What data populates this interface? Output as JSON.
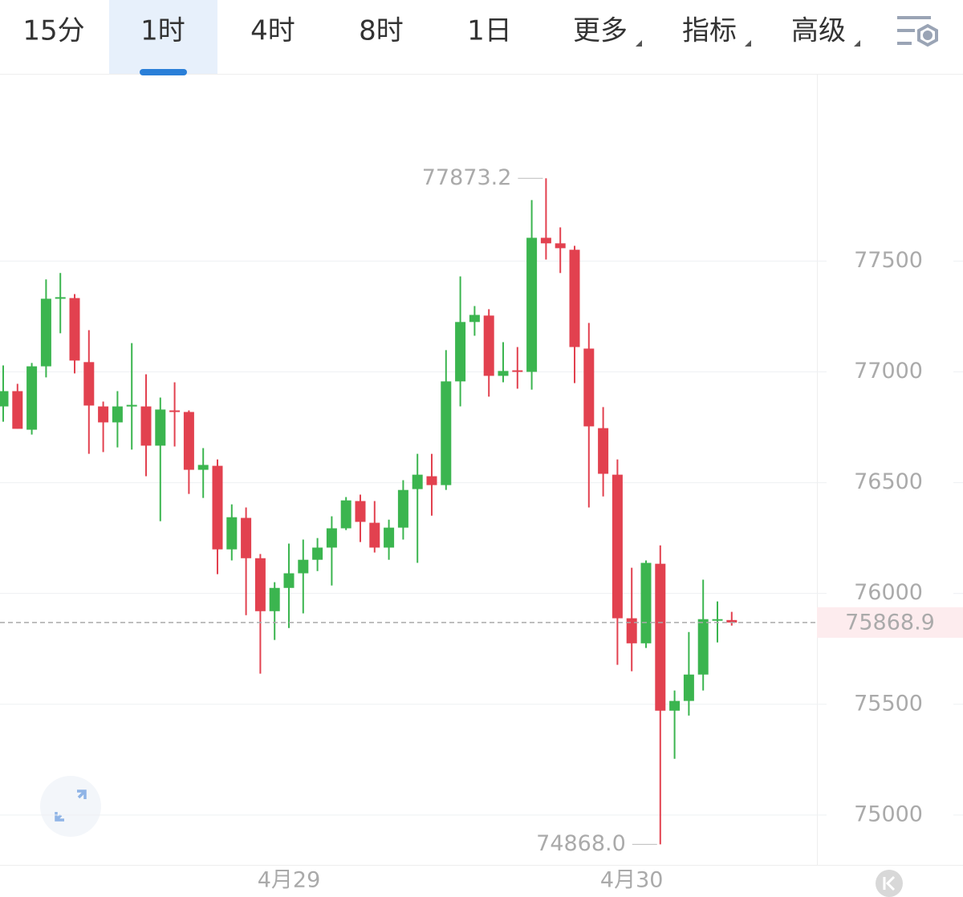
{
  "toolbar": {
    "tabs": [
      "15分",
      "1时",
      "4时",
      "8时",
      "1日",
      "更多",
      "指标",
      "高级"
    ],
    "active": 1
  },
  "chart_data": {
    "type": "candlestick",
    "categories": [
      null,
      null,
      null,
      null,
      null,
      null,
      null,
      null,
      null,
      null,
      null,
      null,
      null,
      null,
      null,
      null,
      null,
      null,
      null,
      null,
      "4月29",
      null,
      null,
      null,
      null,
      null,
      null,
      null,
      null,
      null,
      null,
      null,
      null,
      null,
      null,
      null,
      null,
      null,
      null,
      null,
      null,
      null,
      null,
      null,
      "4月30",
      null,
      null,
      null,
      null,
      null,
      null,
      null
    ],
    "open": [
      76844,
      76913,
      76739,
      77025,
      77330,
      77333,
      77044,
      76844,
      76772,
      76844,
      76844,
      76667,
      76826,
      76819,
      76558,
      76576,
      76199,
      76341,
      76159,
      75920,
      76025,
      76091,
      76152,
      76207,
      76294,
      76417,
      76319,
      76207,
      76297,
      76471,
      76529,
      76489,
      76957,
      77225,
      77254,
      76982,
      77007,
      77000,
      77605,
      77580,
      77551,
      77105,
      76746,
      76536,
      75888,
      75775,
      76134,
      75471,
      75515,
      75634,
      75877,
      75880
    ],
    "high": [
      77029,
      76946,
      77040,
      77417,
      77446,
      77351,
      77188,
      76866,
      76913,
      77130,
      76989,
      76884,
      76953,
      76826,
      76656,
      76605,
      76402,
      76388,
      76178,
      76051,
      76225,
      76243,
      76250,
      76348,
      76435,
      76446,
      76417,
      76333,
      76511,
      76630,
      76630,
      77098,
      77431,
      77297,
      77283,
      77134,
      77112,
      77775,
      77873.2,
      77652,
      77569,
      77221,
      76841,
      76605,
      76116,
      76149,
      76217,
      75562,
      75826,
      76062,
      75964,
      75917
    ],
    "low": [
      76775,
      76743,
      76717,
      76975,
      77174,
      76993,
      76630,
      76638,
      76659,
      76649,
      76529,
      76326,
      76663,
      76449,
      76431,
      76087,
      76149,
      75902,
      75638,
      75790,
      75844,
      75910,
      76101,
      76036,
      76286,
      76232,
      76185,
      76152,
      76243,
      76138,
      76351,
      76467,
      76844,
      77163,
      76888,
      76953,
      76924,
      76920,
      77507,
      77446,
      76949,
      76388,
      76438,
      75678,
      75649,
      75754,
      74868.0,
      75254,
      75449,
      75562,
      75779,
      75855
    ],
    "close": [
      76913,
      76743,
      77025,
      77330,
      77337,
      77051,
      76848,
      76772,
      76844,
      76851,
      76667,
      76830,
      76819,
      76558,
      76580,
      76199,
      76344,
      76159,
      75920,
      76025,
      76091,
      76152,
      76207,
      76294,
      76420,
      76323,
      76207,
      76297,
      76467,
      76536,
      76489,
      76957,
      77225,
      77257,
      76982,
      77004,
      77000,
      77605,
      77580,
      77558,
      77112,
      76754,
      76540,
      75888,
      75775,
      76138,
      75471,
      75515,
      75634,
      75884,
      75884,
      75868.9
    ],
    "up_color": "#3bb54f",
    "down_color": "#e2414f",
    "ylim": [
      74775,
      78345
    ],
    "yticks": [
      75000,
      75500,
      76000,
      76500,
      77000,
      77500
    ],
    "grid": true,
    "max_label": {
      "value": 77873.2,
      "label": "77873.2"
    },
    "min_label": {
      "value": 74868.0,
      "label": "74868.0"
    },
    "last_price": {
      "value": 75868.9,
      "label": "75868.9"
    }
  }
}
